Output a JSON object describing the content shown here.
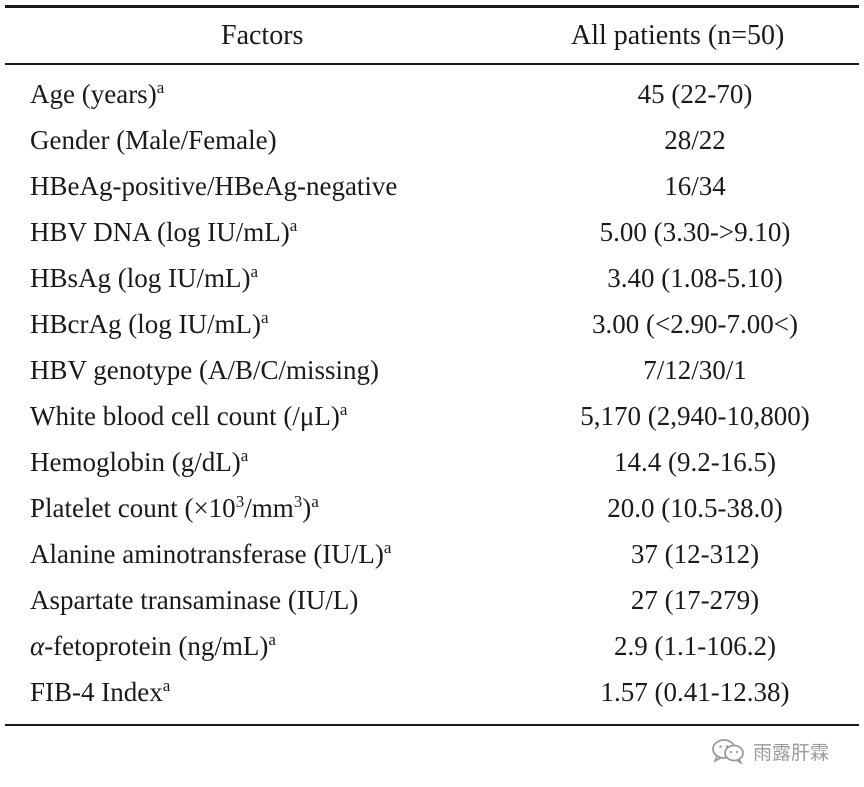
{
  "table": {
    "headers": {
      "factor": "Factors",
      "value": "All patients (n=50)"
    },
    "rows": [
      {
        "factor": "Age (years)",
        "sup": "a",
        "value": "45 (22-70)"
      },
      {
        "factor": "Gender (Male/Female)",
        "sup": "",
        "value": "28/22"
      },
      {
        "factor": "HBeAg-positive/HBeAg-negative",
        "sup": "",
        "value": "16/34"
      },
      {
        "factor": "HBV DNA (log IU/mL)",
        "sup": "a",
        "value": "5.00 (3.30->9.10)"
      },
      {
        "factor": "HBsAg (log IU/mL)",
        "sup": "a",
        "value": "3.40 (1.08-5.10)"
      },
      {
        "factor": "HBcrAg (log IU/mL)",
        "sup": "a",
        "value": "3.00 (<2.90-7.00<)"
      },
      {
        "factor": "HBV genotype (A/B/C/missing)",
        "sup": "",
        "value": "7/12/30/1"
      },
      {
        "factor": "White blood cell count (/μL)",
        "sup": "a",
        "value": "5,170 (2,940-10,800)"
      },
      {
        "factor": "Hemoglobin (g/dL)",
        "sup": "a",
        "value": "14.4 (9.2-16.5)"
      },
      {
        "factor_parts": [
          "Platelet count (×10",
          "3",
          "/mm",
          "3",
          ")"
        ],
        "sup": "a",
        "value": "20.0 (10.5-38.0)"
      },
      {
        "factor": "Alanine aminotransferase (IU/L)",
        "sup": "a",
        "value": "37 (12-312)"
      },
      {
        "factor": "Aspartate transaminase (IU/L)",
        "sup": "",
        "value": "27 (17-279)"
      },
      {
        "factor_parts": [
          "α",
          "-fetoprotein (ng/mL)"
        ],
        "sup": "a",
        "value": "2.9 (1.1-106.2)"
      },
      {
        "factor": "FIB-4 Index",
        "sup": "a",
        "value": "1.57 (0.41-12.38)"
      }
    ]
  },
  "watermark": {
    "text": "雨露肝霖",
    "icon": "wechat-icon"
  }
}
